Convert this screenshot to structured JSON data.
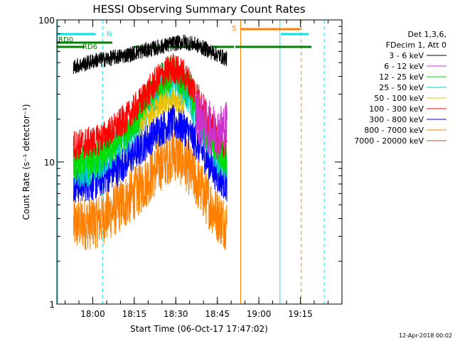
{
  "chart_data": {
    "type": "line",
    "title": "HESSI Observing Summary Count Rates",
    "xlabel": "Start Time (06-Oct-17 17:47:02)",
    "ylabel": "Count Rate (s⁻¹ detector⁻¹)",
    "x_unit": "minutes after 17:47:02",
    "xlim": [
      0,
      103
    ],
    "yscale": "log",
    "ylim": [
      1,
      100
    ],
    "y_ticks": [
      {
        "value": 1,
        "label": "1"
      },
      {
        "value": 10,
        "label": "10"
      },
      {
        "value": 100,
        "label": "100"
      }
    ],
    "x_ticks": [
      {
        "value": 12.97,
        "label": "18:00"
      },
      {
        "value": 27.97,
        "label": "18:15"
      },
      {
        "value": 42.97,
        "label": "18:30"
      },
      {
        "value": 57.97,
        "label": "18:45"
      },
      {
        "value": 72.97,
        "label": "19:00"
      },
      {
        "value": 87.97,
        "label": "19:15"
      }
    ],
    "legend_header": [
      "Det 1,3,6,",
      "FDecim 1, Att 0"
    ],
    "legend_position": "right",
    "series": [
      {
        "name": "3 - 6 keV",
        "color": "#000000",
        "x": [
          6,
          10,
          14,
          18,
          22,
          26,
          30,
          34,
          38,
          42,
          46,
          50,
          54,
          58,
          61.5
        ],
        "y": [
          47,
          49,
          52,
          53,
          55,
          57,
          60,
          62,
          65,
          68,
          70,
          67,
          62,
          57,
          53
        ]
      },
      {
        "name": "6 - 12 keV",
        "color": "#cc33cc",
        "x": [
          50,
          54,
          58,
          61.5
        ],
        "y": [
          22,
          18,
          16,
          18
        ]
      },
      {
        "name": "12 - 25 keV",
        "color": "#00dd00",
        "x": [
          6,
          10,
          14,
          18,
          22,
          26,
          30,
          34,
          38,
          42,
          46,
          50,
          54,
          58,
          61.5
        ],
        "y": [
          9.5,
          9.8,
          10.5,
          12,
          14,
          17,
          22,
          30,
          38,
          43,
          36,
          26,
          17,
          12,
          10
        ]
      },
      {
        "name": "25 - 50 keV",
        "color": "#00cccc",
        "x": [
          6,
          10,
          14,
          18,
          22,
          26,
          30,
          34,
          38,
          42,
          46,
          50,
          54,
          58,
          61.5
        ],
        "y": [
          8.5,
          8.8,
          9.5,
          11,
          13,
          15.5,
          20,
          26,
          33,
          37,
          32,
          23,
          15,
          11,
          9
        ]
      },
      {
        "name": "50 - 100 keV",
        "color": "#e8c000",
        "x": [
          30,
          34,
          38,
          42,
          46
        ],
        "y": [
          18,
          22,
          26,
          28,
          24
        ]
      },
      {
        "name": "100 - 300 keV",
        "color": "#ff0000",
        "x": [
          6,
          10,
          14,
          18,
          22,
          26,
          30,
          34,
          38,
          42,
          46,
          50,
          54,
          58,
          61.5
        ],
        "y": [
          13,
          13.5,
          14,
          15.5,
          18,
          21,
          26,
          33,
          41,
          46,
          41,
          31,
          21,
          15,
          13
        ]
      },
      {
        "name": "300 - 800 keV",
        "color": "#0000ff",
        "x": [
          6,
          10,
          14,
          18,
          22,
          26,
          30,
          34,
          38,
          42,
          46,
          50,
          54,
          58,
          61.5
        ],
        "y": [
          6.8,
          7,
          7.2,
          8,
          9,
          10.5,
          12.5,
          15,
          17.5,
          19,
          17.5,
          14,
          10.5,
          8,
          7
        ]
      },
      {
        "name": "800 - 7000 keV",
        "color": "#ff8000",
        "x": [
          6,
          10,
          14,
          18,
          22,
          26,
          30,
          34,
          38,
          42,
          46,
          50,
          54,
          58,
          61.5
        ],
        "y": [
          3.6,
          3.7,
          3.8,
          4.2,
          4.8,
          5.5,
          6.5,
          8,
          9.8,
          11.5,
          10,
          7.5,
          5.5,
          4.2,
          3.6
        ]
      },
      {
        "name": "7000 - 20000 keV",
        "color": "#a0522d",
        "x": [],
        "y": []
      }
    ],
    "observing_flags": [
      {
        "label": "RD0",
        "color": "#008000",
        "segments": [
          [
            0,
            20
          ]
        ]
      },
      {
        "label": "RD6",
        "color": "#008000",
        "segments": [
          [
            0,
            10
          ],
          [
            28,
            54
          ],
          [
            56,
            64
          ],
          [
            64.5,
            87
          ],
          [
            87,
            92
          ]
        ]
      },
      {
        "label": "N",
        "color": "#00e5ee",
        "segments": [
          [
            0,
            14
          ],
          [
            81,
            91
          ]
        ]
      },
      {
        "label": "S",
        "color": "#ff8000",
        "segments": [
          [
            66.5,
            88
          ]
        ]
      }
    ],
    "event_lines": [
      {
        "x": 0.3,
        "color": "#00e5ee",
        "style": "solid"
      },
      {
        "x": 16.5,
        "color": "#00e5ee",
        "style": "dashed"
      },
      {
        "x": 66.4,
        "color": "#ff8000",
        "style": "solid"
      },
      {
        "x": 80.6,
        "color": "#00e5ee",
        "style": "solid"
      },
      {
        "x": 88.3,
        "color": "#ff8000",
        "style": "dashed"
      },
      {
        "x": 96.6,
        "color": "#00e5ee",
        "style": "dashed"
      }
    ]
  },
  "footer": {
    "timestamp": "12-Apr-2018 00:02"
  }
}
